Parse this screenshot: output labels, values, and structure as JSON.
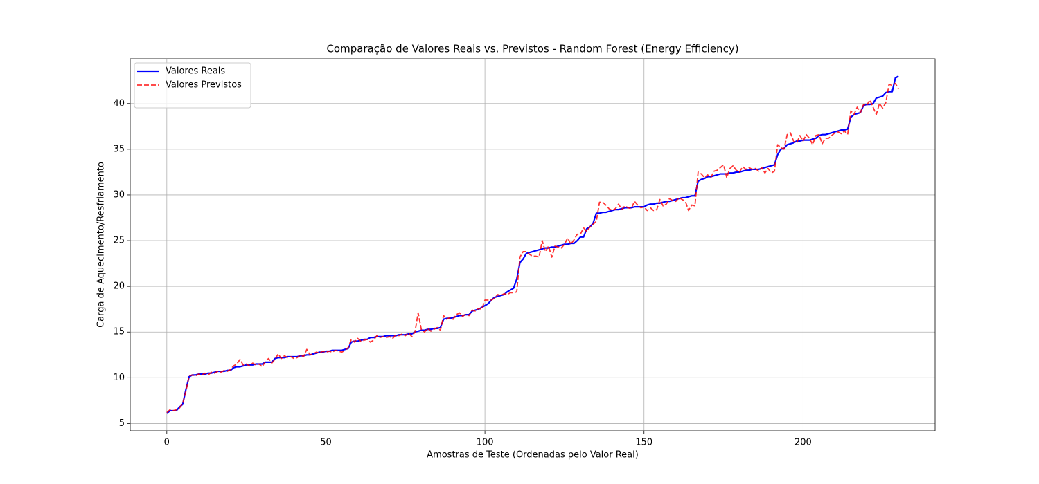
{
  "chart_data": {
    "type": "line",
    "title": "Comparação de Valores Reais vs. Previstos - Random Forest (Energy Efficiency)",
    "x_label": "Amostras de Teste (Ordenadas pelo Valor Real)",
    "y_label": "Carga de Aquecimento/Resfriamento",
    "xlim": [
      -11.5,
      241.5
    ],
    "xticks": [
      0,
      50,
      100,
      150,
      200
    ],
    "ylim": [
      4.2,
      44.9
    ],
    "yticks": [
      5,
      10,
      15,
      20,
      25,
      30,
      35,
      40
    ],
    "grid": true,
    "legend": "upper left",
    "series": [
      {
        "name": "Valores Reais",
        "color": "#0000ff",
        "dashed": false,
        "values": [
          6.1,
          6.4,
          6.4,
          6.4,
          6.8,
          7.1,
          8.7,
          10.1,
          10.3,
          10.3,
          10.4,
          10.4,
          10.4,
          10.5,
          10.5,
          10.6,
          10.7,
          10.7,
          10.7,
          10.8,
          10.8,
          11.1,
          11.2,
          11.2,
          11.3,
          11.4,
          11.4,
          11.4,
          11.5,
          11.5,
          11.5,
          11.7,
          11.7,
          11.7,
          12.1,
          12.2,
          12.2,
          12.2,
          12.3,
          12.3,
          12.3,
          12.3,
          12.4,
          12.4,
          12.5,
          12.5,
          12.6,
          12.7,
          12.8,
          12.8,
          12.9,
          12.9,
          13.0,
          13.0,
          13.0,
          13.0,
          13.1,
          13.2,
          13.9,
          14.0,
          14.0,
          14.1,
          14.2,
          14.2,
          14.4,
          14.4,
          14.5,
          14.5,
          14.5,
          14.6,
          14.6,
          14.6,
          14.6,
          14.7,
          14.7,
          14.7,
          14.8,
          14.8,
          15.0,
          15.1,
          15.2,
          15.2,
          15.3,
          15.3,
          15.4,
          15.4,
          15.5,
          16.4,
          16.5,
          16.5,
          16.6,
          16.7,
          16.8,
          16.8,
          16.9,
          16.9,
          17.3,
          17.4,
          17.5,
          17.7,
          17.9,
          18.1,
          18.5,
          18.8,
          18.9,
          19.0,
          19.1,
          19.4,
          19.6,
          19.8,
          20.8,
          22.6,
          23.0,
          23.6,
          23.7,
          23.8,
          23.9,
          24.0,
          24.1,
          24.2,
          24.2,
          24.3,
          24.3,
          24.4,
          24.5,
          24.6,
          24.6,
          24.7,
          24.7,
          25.0,
          25.4,
          25.4,
          26.3,
          26.5,
          26.9,
          28.0,
          28.0,
          28.1,
          28.1,
          28.2,
          28.3,
          28.4,
          28.4,
          28.5,
          28.6,
          28.6,
          28.6,
          28.7,
          28.7,
          28.7,
          28.7,
          28.9,
          29.0,
          29.0,
          29.1,
          29.1,
          29.2,
          29.3,
          29.3,
          29.4,
          29.5,
          29.6,
          29.7,
          29.7,
          29.8,
          29.9,
          29.9,
          31.5,
          31.7,
          31.8,
          32.0,
          32.0,
          32.1,
          32.2,
          32.3,
          32.3,
          32.3,
          32.4,
          32.4,
          32.5,
          32.5,
          32.6,
          32.7,
          32.7,
          32.8,
          32.8,
          32.8,
          32.9,
          33.0,
          33.1,
          33.2,
          33.3,
          34.4,
          35.0,
          35.1,
          35.5,
          35.6,
          35.7,
          35.9,
          35.9,
          36.0,
          36.0,
          36.0,
          36.1,
          36.2,
          36.5,
          36.6,
          36.6,
          36.7,
          36.8,
          36.9,
          37.0,
          37.1,
          37.1,
          37.2,
          38.5,
          38.8,
          38.9,
          39.0,
          39.8,
          39.9,
          39.9,
          40.0,
          40.6,
          40.7,
          40.8,
          41.2,
          41.3,
          41.3,
          42.8,
          43.0
        ]
      },
      {
        "name": "Valores Previstos",
        "color": "#ff0000",
        "dashed": true,
        "values": [
          6.2,
          6.5,
          6.4,
          6.5,
          6.7,
          7.2,
          8.5,
          10.2,
          10.3,
          10.2,
          10.4,
          10.3,
          10.5,
          10.3,
          10.6,
          10.5,
          10.7,
          10.6,
          10.8,
          10.7,
          10.9,
          11.3,
          11.5,
          12.0,
          11.4,
          11.5,
          11.3,
          11.6,
          11.4,
          11.5,
          11.2,
          11.8,
          12.1,
          11.6,
          12.0,
          12.6,
          12.1,
          12.4,
          12.2,
          12.3,
          12.1,
          12.2,
          12.5,
          12.3,
          13.1,
          12.5,
          12.6,
          12.8,
          12.7,
          12.9,
          12.8,
          12.9,
          12.8,
          13.0,
          12.9,
          12.8,
          13.0,
          13.3,
          14.2,
          13.9,
          14.3,
          14.0,
          14.1,
          14.2,
          13.9,
          14.1,
          14.6,
          14.4,
          14.5,
          14.4,
          14.5,
          14.3,
          14.7,
          14.6,
          14.8,
          14.6,
          14.9,
          14.5,
          15.0,
          17.1,
          15.3,
          15.0,
          15.4,
          15.1,
          15.3,
          15.5,
          15.2,
          16.8,
          16.4,
          16.6,
          16.4,
          16.9,
          17.1,
          16.7,
          17.0,
          16.8,
          17.4,
          17.3,
          17.6,
          17.5,
          18.5,
          18.5,
          18.5,
          18.7,
          19.1,
          19.0,
          19.2,
          19.1,
          19.3,
          19.3,
          19.4,
          23.2,
          23.8,
          23.8,
          23.5,
          23.3,
          23.3,
          23.2,
          25.0,
          23.8,
          24.4,
          23.2,
          24.4,
          24.3,
          24.2,
          24.6,
          25.3,
          24.6,
          25.1,
          25.7,
          25.7,
          26.4,
          26.0,
          26.5,
          26.8,
          27.1,
          29.2,
          29.2,
          28.9,
          28.5,
          28.3,
          28.5,
          29.0,
          28.4,
          28.8,
          28.6,
          28.5,
          29.3,
          28.9,
          28.6,
          28.7,
          28.3,
          28.6,
          28.3,
          28.4,
          29.5,
          28.8,
          29.0,
          29.6,
          29.4,
          29.3,
          29.7,
          29.5,
          29.3,
          28.3,
          28.9,
          28.8,
          32.5,
          32.3,
          31.9,
          32.2,
          31.9,
          32.6,
          32.7,
          33.0,
          33.3,
          31.9,
          32.9,
          33.2,
          32.7,
          32.5,
          33.1,
          32.8,
          33.0,
          32.8,
          32.9,
          32.6,
          33.0,
          32.4,
          32.9,
          32.4,
          32.6,
          35.5,
          35.2,
          35.0,
          36.6,
          36.8,
          35.9,
          35.7,
          36.5,
          35.9,
          36.6,
          36.2,
          35.5,
          36.5,
          36.6,
          35.6,
          36.2,
          36.2,
          36.5,
          36.8,
          36.9,
          36.7,
          37.0,
          36.6,
          39.2,
          38.8,
          39.6,
          39.0,
          39.9,
          39.8,
          40.4,
          39.6,
          38.8,
          40.0,
          39.5,
          40.1,
          42.1,
          42.0,
          42.2,
          41.6
        ]
      }
    ]
  }
}
